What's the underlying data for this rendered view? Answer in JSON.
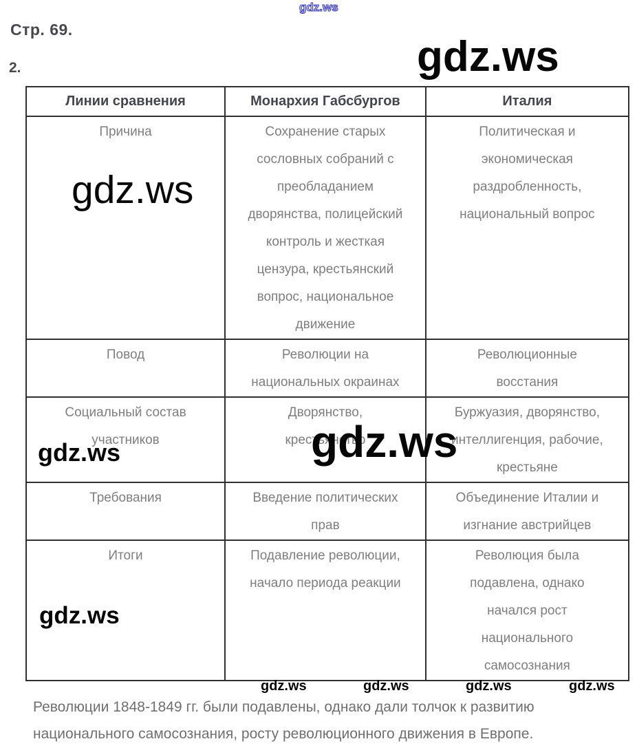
{
  "page": {
    "page_label": "Стр. 69.",
    "task_number": "2."
  },
  "watermarks": {
    "brand": "gdz.ws"
  },
  "table": {
    "columns": [
      "Линии сравнения",
      "Монархия Габсбургов",
      "Италия"
    ],
    "rows": [
      {
        "label": "Причина",
        "habsburg": "Сохранение старых\nсословных собраний с\nпреобладанием\nдворянства, полицейский\nконтроль и жесткая\nцензура, крестьянский\nвопрос, национальное\nдвижение",
        "italy": "Политическая и\nэкономическая\nраздробленность,\nнациональный вопрос"
      },
      {
        "label": "Повод",
        "habsburg": "Революции на\nнациональных окраинах",
        "italy": "Революционные\nвосстания"
      },
      {
        "label": "Социальный состав\nучастников",
        "habsburg": "Дворянство,\nкрестьянство",
        "italy": "Буржуазия, дворянство,\nинтеллигенция, рабочие,\nкрестьяне"
      },
      {
        "label": "Требования",
        "habsburg": "Введение политических\nправ",
        "italy": "Объединение Италии и\nизгнание австрийцев"
      },
      {
        "label": "Итоги",
        "habsburg": "Подавление революции,\nначало периода реакции",
        "italy": "Революция была\nподавлена, однако\nначался рост\nнационального\nсамосознания"
      }
    ]
  },
  "footer": {
    "conclusion": "Революции 1848-1849 гг. были подавлены, однако дали толчок к развитию\nнационального самосознания, росту революционного движения в Европе.",
    "colors": {
      "heading_text": "#47474d",
      "table_border": "#303030",
      "body_text": "#7e7e7e",
      "watermark_black": "#070707",
      "watermark_blue": "#3c3cc0"
    }
  }
}
